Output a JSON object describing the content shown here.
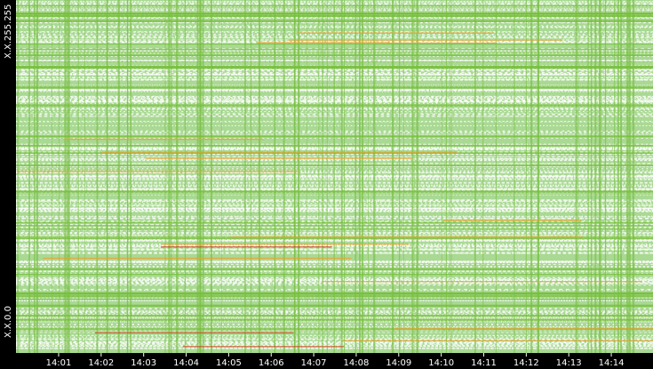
{
  "chart_data": {
    "type": "heatmap",
    "x_labels": [
      "14:01",
      "14:02",
      "14:03",
      "14:04",
      "14:05",
      "14:06",
      "14:07",
      "14:08",
      "14:09",
      "14:10",
      "14:11",
      "14:12",
      "14:13",
      "14:14"
    ],
    "y_labels": [
      "X.X.0.0",
      "X.X.255.255"
    ]
  }
}
